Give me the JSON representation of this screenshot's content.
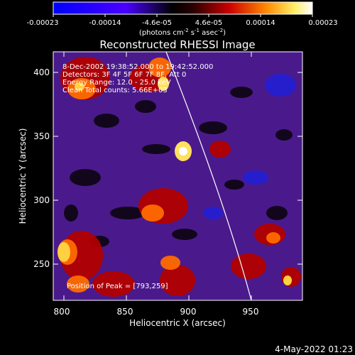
{
  "colorbar": {
    "ticks": [
      "-0.00023",
      "-0.00014",
      "-4.6e-05",
      "4.6e-05",
      "0.00014",
      "0.00023"
    ],
    "units_main": "(photons cm",
    "units_sup1": "-2",
    "units_mid": " s",
    "units_sup2": "-1",
    "units_end": " asec",
    "units_sup3": "-2",
    "units_close": ")"
  },
  "plot": {
    "title": "Reconstructed RHESSI Image",
    "info_lines": [
      "8-Dec-2002 19:38:52.000 to 19:42:52.000",
      "Detectors: 3F 4F 5F 6F 7F 8F, Att 0",
      "Energy Range: 12.0 - 25.0 keV",
      "Clean    Total counts: 5.66E+03"
    ],
    "peak_label": "Position of Peak = [793,259]",
    "x_axis": {
      "label": "Heliocentric X (arcsec)",
      "ticks": [
        "800",
        "850",
        "900",
        "950"
      ]
    },
    "y_axis": {
      "label": "Heliocentric Y (arcsec)",
      "ticks": [
        "250",
        "300",
        "350",
        "400"
      ]
    }
  },
  "timestamp": "4-May-2022 01:23",
  "colors": {
    "background": "#000000",
    "foreground": "#ffffff",
    "limb": "#ffffff"
  }
}
